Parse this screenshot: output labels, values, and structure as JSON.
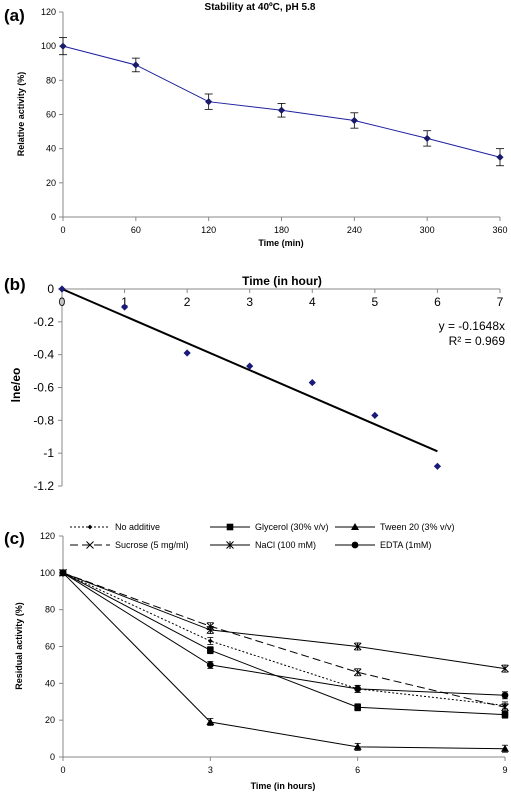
{
  "chart_data": [
    {
      "panel": "(a)",
      "type": "line",
      "title": "Stability at 40ºC, pH 5.8",
      "xlabel": "Time (min)",
      "ylabel": "Relative activity (%)",
      "x": [
        0,
        60,
        120,
        180,
        240,
        300,
        360
      ],
      "xticks": [
        "0",
        "60",
        "120",
        "180",
        "240",
        "300",
        "360"
      ],
      "yticks": [
        "0",
        "20",
        "40",
        "60",
        "80",
        "100",
        "120"
      ],
      "xlim": [
        0,
        360
      ],
      "ylim": [
        0,
        120
      ],
      "series": [
        {
          "values": [
            100,
            89,
            67.5,
            62.5,
            56.5,
            46,
            35
          ],
          "errors": [
            5,
            4,
            4.5,
            4,
            4.5,
            4.5,
            5
          ],
          "color": "#1f1fa0"
        }
      ]
    },
    {
      "panel": "(b)",
      "type": "scatter",
      "xlabel": "Time (in hour)",
      "ylabel": "lne/eo",
      "x": [
        0,
        1,
        2,
        3,
        4,
        5,
        6
      ],
      "xticks": [
        "0",
        "1",
        "2",
        "3",
        "4",
        "5",
        "6",
        "7"
      ],
      "yticks": [
        "0",
        "-0.2",
        "-0.4",
        "-0.6",
        "-0.8",
        "-1",
        "-1.2"
      ],
      "xlim": [
        0,
        7
      ],
      "ylim": [
        -1.2,
        0
      ],
      "series": [
        {
          "values": [
            0,
            -0.11,
            -0.39,
            -0.47,
            -0.57,
            -0.77,
            -1.08
          ],
          "color": "#1a1a7a"
        }
      ],
      "trendline": {
        "slope": -0.1648,
        "x_end": 6
      },
      "annotations": [
        "y = -0.1648x",
        "R² = 0.969"
      ]
    },
    {
      "panel": "(c)",
      "type": "line",
      "xlabel": "Time (in hours)",
      "ylabel": "Residual activity (%)",
      "x": [
        0,
        3,
        6,
        9
      ],
      "xticks": [
        "0",
        "3",
        "6",
        "9"
      ],
      "yticks": [
        "0",
        "20",
        "40",
        "60",
        "80",
        "100",
        "120"
      ],
      "xlim": [
        0,
        9
      ],
      "ylim": [
        0,
        120
      ],
      "series": [
        {
          "name": "No additive",
          "values": [
            100,
            63,
            37,
            28
          ],
          "marker": "diamond-small",
          "dash": "2,2"
        },
        {
          "name": "Glycerol (30% v/v)",
          "values": [
            100,
            58,
            27,
            23
          ],
          "marker": "square",
          "dash": ""
        },
        {
          "name": "Tween 20 (3% v/v)",
          "values": [
            100,
            19,
            5.5,
            4.5
          ],
          "marker": "triangle",
          "dash": ""
        },
        {
          "name": "Sucrose (5 mg/ml)",
          "values": [
            100,
            71,
            46,
            27
          ],
          "marker": "x",
          "dash": "8,4"
        },
        {
          "name": "NaCl (100 mM)",
          "values": [
            100,
            69,
            60,
            48
          ],
          "marker": "star",
          "dash": ""
        },
        {
          "name": "EDTA (1mM)",
          "values": [
            100,
            50,
            37,
            33.5
          ],
          "marker": "circle",
          "dash": ""
        }
      ]
    }
  ]
}
